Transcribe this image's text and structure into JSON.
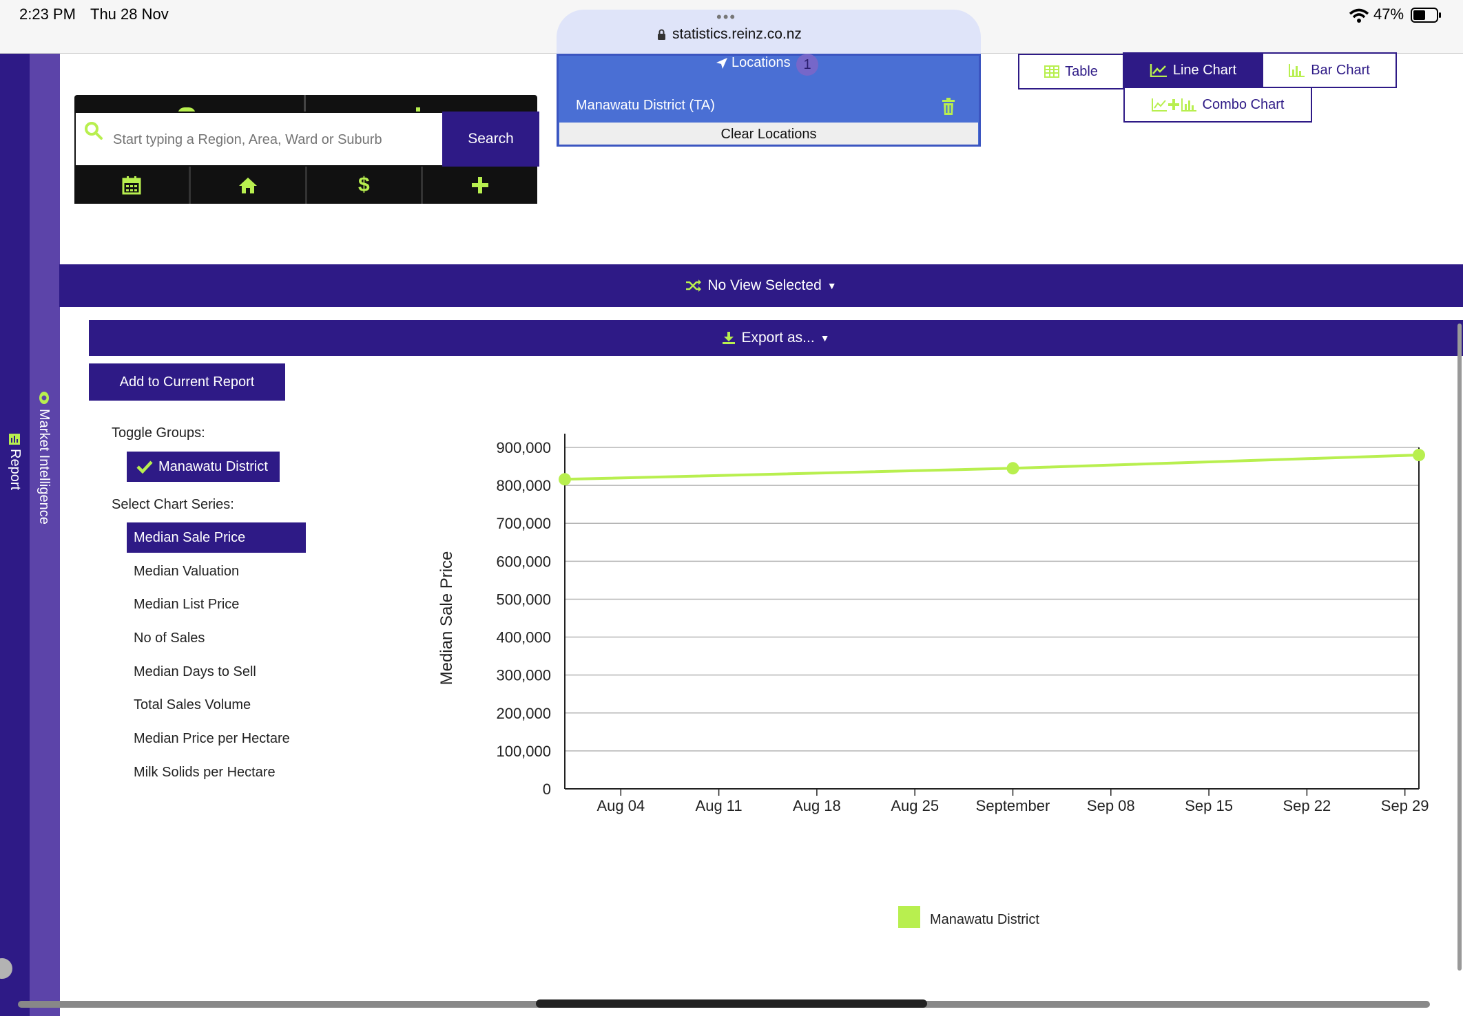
{
  "status": {
    "time": "2:23 PM",
    "date": "Thu 28 Nov",
    "battery": "47%"
  },
  "browser": {
    "url": "statistics.reinz.co.nz"
  },
  "rails": {
    "report_label": "Report",
    "market_label": "Market Intelligence"
  },
  "search": {
    "placeholder": "Start typing a Region, Area, Ward or Suburb",
    "button": "Search"
  },
  "locations": {
    "title": "Locations",
    "count": "1",
    "item": "Manawatu District (TA)",
    "clear": "Clear Locations"
  },
  "views": {
    "table": "Table",
    "line": "Line Chart",
    "bar": "Bar Chart",
    "combo": "Combo Chart",
    "active": "line"
  },
  "view_selector": "No View Selected",
  "export_label": "Export as...",
  "add_report": "Add to Current Report",
  "toggle_groups_label": "Toggle Groups:",
  "groups": [
    "Manawatu District"
  ],
  "series_label": "Select Chart Series:",
  "series": [
    "Median Sale Price",
    "Median Valuation",
    "Median List Price",
    "No of Sales",
    "Median Days to Sell",
    "Total Sales Volume",
    "Median Price per Hectare",
    "Milk Solids per Hectare"
  ],
  "colors": {
    "primary": "#2e1a86",
    "accent": "#b8ef4f",
    "locations": "#4a6fd4"
  },
  "chart_data": {
    "type": "line",
    "ylabel": "Median Sale Price",
    "ylim": [
      0,
      900000
    ],
    "yticks": [
      "0",
      "100,000",
      "200,000",
      "300,000",
      "400,000",
      "500,000",
      "600,000",
      "700,000",
      "800,000",
      "900,000"
    ],
    "xticks": [
      "Aug 04",
      "Aug 11",
      "Aug 18",
      "Aug 25",
      "September",
      "Sep 08",
      "Sep 15",
      "Sep 22",
      "Sep 29"
    ],
    "x_range": [
      "2024-07-31",
      "2024-09-30"
    ],
    "grid": true,
    "legend_position": "bottom",
    "series": [
      {
        "name": "Manawatu District",
        "color": "#b8ef4f",
        "points": [
          {
            "x": "2024-07-31",
            "y": 816000
          },
          {
            "x": "2024-09-01",
            "y": 845000
          },
          {
            "x": "2024-09-30",
            "y": 880000
          }
        ]
      }
    ]
  }
}
